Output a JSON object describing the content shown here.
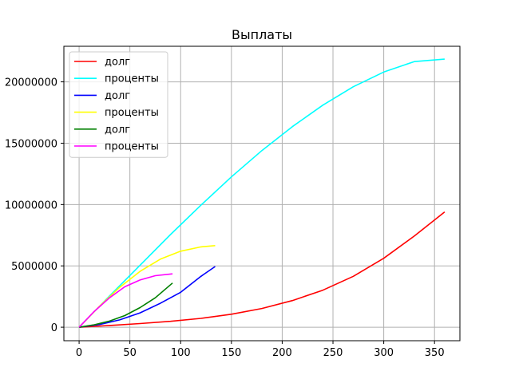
{
  "chart_data": {
    "type": "line",
    "title": "Выплаты",
    "xlabel": "",
    "ylabel": "",
    "xlim": [
      -15,
      375
    ],
    "ylim": [
      -1100000,
      22900000
    ],
    "xticks": [
      0,
      50,
      100,
      150,
      200,
      250,
      300,
      350
    ],
    "xtick_labels": [
      "0",
      "50",
      "100",
      "150",
      "200",
      "250",
      "300",
      "350"
    ],
    "yticks": [
      0,
      5000000,
      10000000,
      15000000,
      20000000
    ],
    "ytick_labels": [
      "0",
      "5000000",
      "10000000",
      "15000000",
      "20000000"
    ],
    "grid": true,
    "legend_position": "top-left",
    "series": [
      {
        "name": "долг",
        "color": "#ff0000",
        "x": [
          0,
          30,
          60,
          90,
          120,
          150,
          180,
          210,
          240,
          270,
          300,
          330,
          360
        ],
        "y": [
          0,
          140000,
          300000,
          480000,
          720000,
          1060000,
          1530000,
          2170000,
          3020000,
          4150000,
          5620000,
          7430000,
          9400000
        ]
      },
      {
        "name": "проценты",
        "color": "#00ffff",
        "x": [
          0,
          30,
          60,
          90,
          120,
          150,
          180,
          210,
          240,
          270,
          300,
          330,
          360
        ],
        "y": [
          0,
          2550000,
          5050000,
          7550000,
          9950000,
          12250000,
          14400000,
          16350000,
          18100000,
          19600000,
          20800000,
          21650000,
          21850000
        ]
      },
      {
        "name": "долг",
        "color": "#0000ff",
        "x": [
          0,
          20,
          40,
          60,
          80,
          100,
          120,
          134
        ],
        "y": [
          0,
          220000,
          600000,
          1170000,
          1950000,
          2850000,
          4150000,
          4950000
        ]
      },
      {
        "name": "проценты",
        "color": "#ffff00",
        "x": [
          0,
          20,
          40,
          60,
          80,
          100,
          120,
          134
        ],
        "y": [
          0,
          1700000,
          3250000,
          4550000,
          5550000,
          6200000,
          6550000,
          6650000
        ]
      },
      {
        "name": "долг",
        "color": "#008000",
        "x": [
          0,
          15,
          30,
          45,
          60,
          75,
          92
        ],
        "y": [
          0,
          200000,
          500000,
          950000,
          1600000,
          2400000,
          3600000
        ]
      },
      {
        "name": "проценты",
        "color": "#ff00ff",
        "x": [
          0,
          15,
          30,
          45,
          60,
          75,
          92
        ],
        "y": [
          0,
          1300000,
          2400000,
          3300000,
          3850000,
          4200000,
          4350000
        ]
      }
    ]
  }
}
